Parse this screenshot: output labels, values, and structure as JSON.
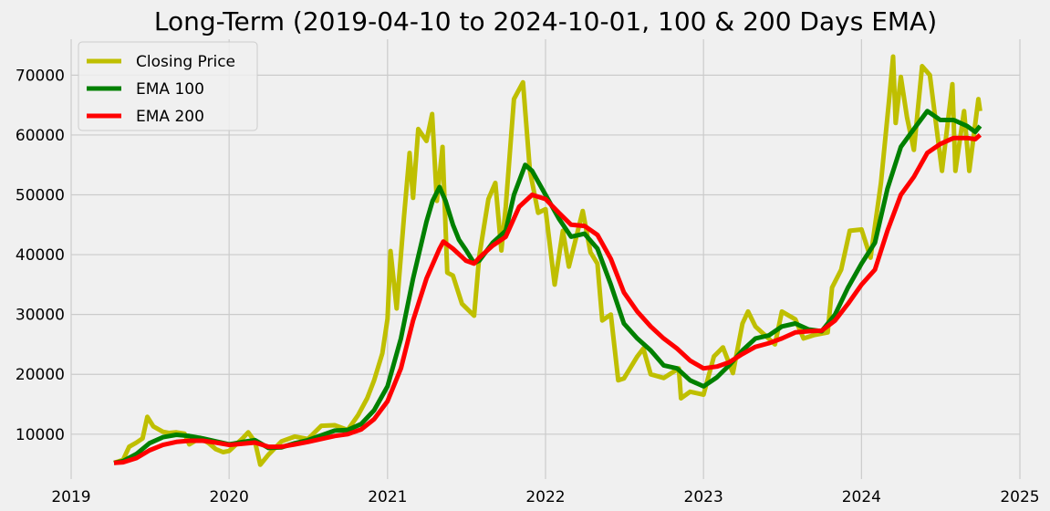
{
  "chart_data": {
    "type": "line",
    "title": "Long-Term (2019-04-10 to 2024-10-01, 100 & 200 Days EMA)",
    "xlabel": "",
    "ylabel": "",
    "x_range": [
      "2019-01-01",
      "2025-01-01"
    ],
    "ylim": [
      2500,
      76000
    ],
    "x_ticks": [
      "2019",
      "2020",
      "2021",
      "2022",
      "2023",
      "2024",
      "2025"
    ],
    "y_ticks": [
      10000,
      20000,
      30000,
      40000,
      50000,
      60000,
      70000
    ],
    "grid": true,
    "legend_position": "top-left",
    "series": [
      {
        "name": "Closing Price",
        "color": "#bfbf00",
        "points": [
          [
            "2019-04-10",
            5200
          ],
          [
            "2019-05-01",
            5700
          ],
          [
            "2019-05-15",
            7900
          ],
          [
            "2019-06-01",
            8600
          ],
          [
            "2019-06-15",
            9300
          ],
          [
            "2019-06-26",
            12900
          ],
          [
            "2019-07-10",
            11300
          ],
          [
            "2019-08-01",
            10400
          ],
          [
            "2019-08-15",
            10200
          ],
          [
            "2019-09-01",
            10300
          ],
          [
            "2019-09-20",
            10100
          ],
          [
            "2019-10-01",
            8300
          ],
          [
            "2019-10-26",
            9400
          ],
          [
            "2019-11-15",
            8500
          ],
          [
            "2019-12-01",
            7500
          ],
          [
            "2019-12-18",
            7000
          ],
          [
            "2020-01-01",
            7200
          ],
          [
            "2020-02-01",
            9300
          ],
          [
            "2020-02-14",
            10300
          ],
          [
            "2020-03-01",
            8700
          ],
          [
            "2020-03-13",
            4900
          ],
          [
            "2020-04-01",
            6600
          ],
          [
            "2020-05-01",
            8800
          ],
          [
            "2020-06-01",
            9600
          ],
          [
            "2020-07-01",
            9200
          ],
          [
            "2020-08-01",
            11400
          ],
          [
            "2020-09-01",
            11500
          ],
          [
            "2020-10-01",
            10700
          ],
          [
            "2020-10-25",
            13200
          ],
          [
            "2020-11-15",
            16000
          ],
          [
            "2020-12-01",
            19000
          ],
          [
            "2020-12-20",
            23500
          ],
          [
            "2021-01-01",
            29300
          ],
          [
            "2021-01-08",
            40600
          ],
          [
            "2021-01-22",
            31000
          ],
          [
            "2021-02-08",
            46400
          ],
          [
            "2021-02-21",
            57000
          ],
          [
            "2021-03-01",
            49500
          ],
          [
            "2021-03-13",
            61000
          ],
          [
            "2021-04-01",
            59000
          ],
          [
            "2021-04-14",
            63500
          ],
          [
            "2021-04-25",
            49000
          ],
          [
            "2021-05-08",
            58000
          ],
          [
            "2021-05-19",
            37000
          ],
          [
            "2021-06-01",
            36500
          ],
          [
            "2021-06-22",
            31800
          ],
          [
            "2021-07-20",
            29800
          ],
          [
            "2021-08-01",
            39800
          ],
          [
            "2021-08-22",
            49300
          ],
          [
            "2021-09-07",
            52000
          ],
          [
            "2021-09-21",
            40700
          ],
          [
            "2021-10-01",
            48000
          ],
          [
            "2021-10-20",
            66000
          ],
          [
            "2021-11-10",
            68800
          ],
          [
            "2021-11-26",
            54000
          ],
          [
            "2021-12-15",
            47000
          ],
          [
            "2022-01-01",
            47600
          ],
          [
            "2022-01-22",
            35000
          ],
          [
            "2022-02-10",
            44000
          ],
          [
            "2022-02-24",
            38000
          ],
          [
            "2022-03-28",
            47300
          ],
          [
            "2022-04-15",
            40400
          ],
          [
            "2022-05-01",
            38500
          ],
          [
            "2022-05-12",
            29000
          ],
          [
            "2022-06-01",
            30000
          ],
          [
            "2022-06-18",
            19000
          ],
          [
            "2022-07-01",
            19300
          ],
          [
            "2022-08-01",
            23000
          ],
          [
            "2022-08-15",
            24300
          ],
          [
            "2022-09-01",
            20000
          ],
          [
            "2022-10-01",
            19400
          ],
          [
            "2022-11-05",
            21000
          ],
          [
            "2022-11-10",
            16000
          ],
          [
            "2022-12-01",
            17100
          ],
          [
            "2023-01-01",
            16600
          ],
          [
            "2023-01-25",
            23000
          ],
          [
            "2023-02-15",
            24500
          ],
          [
            "2023-03-10",
            20200
          ],
          [
            "2023-04-01",
            28500
          ],
          [
            "2023-04-14",
            30500
          ],
          [
            "2023-05-01",
            28000
          ],
          [
            "2023-06-15",
            25000
          ],
          [
            "2023-07-01",
            30500
          ],
          [
            "2023-08-01",
            29200
          ],
          [
            "2023-08-20",
            26000
          ],
          [
            "2023-09-15",
            26600
          ],
          [
            "2023-10-15",
            27000
          ],
          [
            "2023-10-25",
            34500
          ],
          [
            "2023-11-15",
            37500
          ],
          [
            "2023-12-05",
            44000
          ],
          [
            "2024-01-01",
            44200
          ],
          [
            "2024-01-22",
            39500
          ],
          [
            "2024-02-15",
            52000
          ],
          [
            "2024-03-05",
            66000
          ],
          [
            "2024-03-14",
            73100
          ],
          [
            "2024-03-20",
            62000
          ],
          [
            "2024-04-01",
            69700
          ],
          [
            "2024-04-15",
            63000
          ],
          [
            "2024-05-01",
            57500
          ],
          [
            "2024-05-20",
            71500
          ],
          [
            "2024-06-07",
            70000
          ],
          [
            "2024-07-05",
            54000
          ],
          [
            "2024-07-29",
            68500
          ],
          [
            "2024-08-05",
            54000
          ],
          [
            "2024-08-25",
            64000
          ],
          [
            "2024-09-06",
            54000
          ],
          [
            "2024-09-27",
            66000
          ],
          [
            "2024-10-01",
            64000
          ]
        ]
      },
      {
        "name": "EMA 100",
        "color": "#008000",
        "points": [
          [
            "2019-04-10",
            5200
          ],
          [
            "2019-05-01",
            5500
          ],
          [
            "2019-06-01",
            6700
          ],
          [
            "2019-07-01",
            8500
          ],
          [
            "2019-08-01",
            9500
          ],
          [
            "2019-09-01",
            9900
          ],
          [
            "2019-10-01",
            9700
          ],
          [
            "2019-11-01",
            9300
          ],
          [
            "2019-12-01",
            8800
          ],
          [
            "2020-01-01",
            8300
          ],
          [
            "2020-02-01",
            8700
          ],
          [
            "2020-03-01",
            9000
          ],
          [
            "2020-04-01",
            7700
          ],
          [
            "2020-05-01",
            7800
          ],
          [
            "2020-06-01",
            8500
          ],
          [
            "2020-07-01",
            9000
          ],
          [
            "2020-08-01",
            9800
          ],
          [
            "2020-09-01",
            10600
          ],
          [
            "2020-10-01",
            10700
          ],
          [
            "2020-11-01",
            11700
          ],
          [
            "2020-12-01",
            14000
          ],
          [
            "2021-01-01",
            18000
          ],
          [
            "2021-02-01",
            26000
          ],
          [
            "2021-03-01",
            36000
          ],
          [
            "2021-04-01",
            45500
          ],
          [
            "2021-04-15",
            49000
          ],
          [
            "2021-05-01",
            51300
          ],
          [
            "2021-05-15",
            49000
          ],
          [
            "2021-06-01",
            45000
          ],
          [
            "2021-06-15",
            42500
          ],
          [
            "2021-07-01",
            40800
          ],
          [
            "2021-07-20",
            38600
          ],
          [
            "2021-08-01",
            39000
          ],
          [
            "2021-09-01",
            42000
          ],
          [
            "2021-10-01",
            44000
          ],
          [
            "2021-10-20",
            50000
          ],
          [
            "2021-11-15",
            55000
          ],
          [
            "2021-12-01",
            54000
          ],
          [
            "2022-01-01",
            50000
          ],
          [
            "2022-02-01",
            46000
          ],
          [
            "2022-03-01",
            43000
          ],
          [
            "2022-04-01",
            43500
          ],
          [
            "2022-05-01",
            41000
          ],
          [
            "2022-06-01",
            35000
          ],
          [
            "2022-07-01",
            28500
          ],
          [
            "2022-08-01",
            26000
          ],
          [
            "2022-09-01",
            24000
          ],
          [
            "2022-10-01",
            21500
          ],
          [
            "2022-11-01",
            21000
          ],
          [
            "2022-12-01",
            19000
          ],
          [
            "2023-01-01",
            18000
          ],
          [
            "2023-02-01",
            19500
          ],
          [
            "2023-03-01",
            21500
          ],
          [
            "2023-04-01",
            24000
          ],
          [
            "2023-05-01",
            26000
          ],
          [
            "2023-06-01",
            26500
          ],
          [
            "2023-07-01",
            28000
          ],
          [
            "2023-08-01",
            28500
          ],
          [
            "2023-09-01",
            27500
          ],
          [
            "2023-10-01",
            27200
          ],
          [
            "2023-11-01",
            30000
          ],
          [
            "2023-12-01",
            34500
          ],
          [
            "2024-01-01",
            38500
          ],
          [
            "2024-02-01",
            42000
          ],
          [
            "2024-03-01",
            51000
          ],
          [
            "2024-04-01",
            58000
          ],
          [
            "2024-05-01",
            61000
          ],
          [
            "2024-06-01",
            64000
          ],
          [
            "2024-07-01",
            62500
          ],
          [
            "2024-08-01",
            62500
          ],
          [
            "2024-09-01",
            61500
          ],
          [
            "2024-09-20",
            60500
          ],
          [
            "2024-10-01",
            61500
          ]
        ]
      },
      {
        "name": "EMA 200",
        "color": "#ff0000",
        "points": [
          [
            "2019-04-10",
            5200
          ],
          [
            "2019-05-01",
            5300
          ],
          [
            "2019-06-01",
            6000
          ],
          [
            "2019-07-01",
            7300
          ],
          [
            "2019-08-01",
            8200
          ],
          [
            "2019-09-01",
            8700
          ],
          [
            "2019-10-01",
            8900
          ],
          [
            "2019-11-01",
            8900
          ],
          [
            "2019-12-01",
            8600
          ],
          [
            "2020-01-01",
            8200
          ],
          [
            "2020-02-01",
            8400
          ],
          [
            "2020-03-01",
            8600
          ],
          [
            "2020-04-01",
            7900
          ],
          [
            "2020-05-01",
            7900
          ],
          [
            "2020-06-01",
            8300
          ],
          [
            "2020-07-01",
            8700
          ],
          [
            "2020-08-01",
            9200
          ],
          [
            "2020-09-01",
            9700
          ],
          [
            "2020-10-01",
            10000
          ],
          [
            "2020-11-01",
            10800
          ],
          [
            "2020-12-01",
            12500
          ],
          [
            "2021-01-01",
            15500
          ],
          [
            "2021-02-01",
            21000
          ],
          [
            "2021-03-01",
            29000
          ],
          [
            "2021-04-01",
            36000
          ],
          [
            "2021-05-01",
            41000
          ],
          [
            "2021-05-10",
            42200
          ],
          [
            "2021-06-01",
            41000
          ],
          [
            "2021-07-01",
            39000
          ],
          [
            "2021-07-20",
            38500
          ],
          [
            "2021-08-01",
            39500
          ],
          [
            "2021-09-01",
            41500
          ],
          [
            "2021-10-01",
            43000
          ],
          [
            "2021-11-01",
            48000
          ],
          [
            "2021-12-01",
            50000
          ],
          [
            "2022-01-01",
            49300
          ],
          [
            "2022-02-01",
            47000
          ],
          [
            "2022-03-01",
            45000
          ],
          [
            "2022-04-01",
            44800
          ],
          [
            "2022-05-01",
            43300
          ],
          [
            "2022-06-01",
            39300
          ],
          [
            "2022-07-01",
            33700
          ],
          [
            "2022-08-01",
            30500
          ],
          [
            "2022-09-01",
            28000
          ],
          [
            "2022-10-01",
            26000
          ],
          [
            "2022-11-01",
            24300
          ],
          [
            "2022-12-01",
            22300
          ],
          [
            "2023-01-01",
            21000
          ],
          [
            "2023-02-01",
            21300
          ],
          [
            "2023-03-01",
            22000
          ],
          [
            "2023-04-01",
            23400
          ],
          [
            "2023-05-01",
            24600
          ],
          [
            "2023-06-01",
            25200
          ],
          [
            "2023-07-01",
            26000
          ],
          [
            "2023-08-01",
            27000
          ],
          [
            "2023-09-01",
            27200
          ],
          [
            "2023-10-01",
            27300
          ],
          [
            "2023-11-01",
            29000
          ],
          [
            "2023-12-01",
            31800
          ],
          [
            "2024-01-01",
            35000
          ],
          [
            "2024-02-01",
            37500
          ],
          [
            "2024-03-01",
            44000
          ],
          [
            "2024-04-01",
            50000
          ],
          [
            "2024-05-01",
            53000
          ],
          [
            "2024-06-01",
            57000
          ],
          [
            "2024-07-01",
            58500
          ],
          [
            "2024-08-01",
            59500
          ],
          [
            "2024-09-01",
            59500
          ],
          [
            "2024-09-20",
            59300
          ],
          [
            "2024-10-01",
            60000
          ]
        ]
      }
    ]
  }
}
